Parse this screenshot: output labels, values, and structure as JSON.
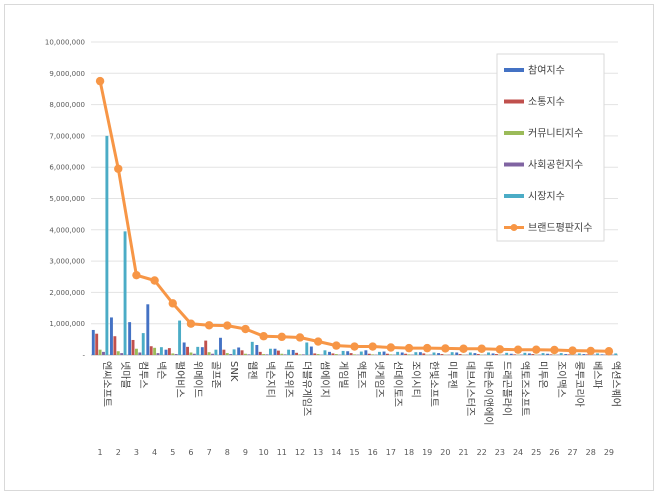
{
  "chart_data": {
    "type": "bar",
    "title": "",
    "xlabel": "",
    "ylabel": "",
    "ylim": [
      0,
      10000000
    ],
    "yticks": [
      0,
      1000000,
      2000000,
      3000000,
      4000000,
      5000000,
      6000000,
      7000000,
      8000000,
      9000000,
      10000000
    ],
    "ytick_labels": [
      "-",
      "1,000,000",
      "2,000,000",
      "3,000,000",
      "4,000,000",
      "5,000,000",
      "6,000,000",
      "7,000,000",
      "8,000,000",
      "9,000,000",
      "10,000,000"
    ],
    "grid": true,
    "legend_position": "right",
    "categories": [
      "엔씨소프트",
      "넷마블",
      "컴투스",
      "넥슨",
      "펄어비스",
      "위메이드",
      "골프존",
      "SNK",
      "웹젠",
      "넥슨지티",
      "네오위즈",
      "더블유게임즈",
      "썸에이지",
      "게임빌",
      "액토즈",
      "넷게임즈",
      "선데이토즈",
      "조이시티",
      "한빛소프트",
      "미투젠",
      "데브시스터즈",
      "바른손이앤에이",
      "드래곤플라이",
      "액토즈소프트",
      "미투온",
      "조이맥스",
      "룽투코리아",
      "베스파",
      "액션스퀘어"
    ],
    "ranks": [
      "1",
      "2",
      "3",
      "4",
      "5",
      "6",
      "7",
      "8",
      "9",
      "10",
      "11",
      "12",
      "13",
      "14",
      "15",
      "16",
      "17",
      "18",
      "19",
      "20",
      "21",
      "22",
      "23",
      "24",
      "25",
      "26",
      "27",
      "28",
      "29"
    ],
    "series": [
      {
        "name": "참여지수",
        "color": "#4472c4",
        "values": [
          800000,
          1200000,
          1050000,
          1620000,
          170000,
          400000,
          250000,
          550000,
          240000,
          320000,
          200000,
          160000,
          270000,
          100000,
          120000,
          150000,
          110000,
          80000,
          90000,
          60000,
          80000,
          60000,
          50000,
          40000,
          50000,
          40000,
          30000,
          30000,
          20000
        ]
      },
      {
        "name": "소통지수",
        "color": "#c0504d",
        "values": [
          680000,
          600000,
          480000,
          280000,
          220000,
          260000,
          460000,
          170000,
          150000,
          100000,
          140000,
          70000,
          50000,
          50000,
          60000,
          40000,
          40000,
          40000,
          50000,
          30000,
          30000,
          30000,
          30000,
          20000,
          30000,
          20000,
          20000,
          20000,
          10000
        ]
      },
      {
        "name": "커뮤니티지수",
        "color": "#9bbb59",
        "values": [
          170000,
          120000,
          200000,
          230000,
          50000,
          80000,
          90000,
          60000,
          40000,
          30000,
          40000,
          20000,
          30000,
          30000,
          20000,
          20000,
          20000,
          20000,
          10000,
          10000,
          10000,
          10000,
          10000,
          10000,
          10000,
          10000,
          10000,
          10000,
          10000
        ]
      },
      {
        "name": "사회공헌지수",
        "color": "#8064a2",
        "values": [
          100000,
          60000,
          80000,
          60000,
          30000,
          40000,
          40000,
          30000,
          20000,
          20000,
          20000,
          20000,
          10000,
          10000,
          10000,
          10000,
          10000,
          10000,
          10000,
          10000,
          10000,
          10000,
          10000,
          10000,
          10000,
          10000,
          10000,
          10000,
          10000
        ]
      },
      {
        "name": "시장지수",
        "color": "#4bacc6",
        "values": [
          7000000,
          3950000,
          700000,
          250000,
          1100000,
          260000,
          170000,
          180000,
          420000,
          200000,
          170000,
          400000,
          150000,
          130000,
          110000,
          100000,
          100000,
          90000,
          80000,
          90000,
          80000,
          80000,
          70000,
          70000,
          60000,
          60000,
          50000,
          50000,
          50000
        ]
      }
    ],
    "line": {
      "name": "브랜드평판지수",
      "color": "#f79646",
      "values": [
        8750000,
        5950000,
        2550000,
        2380000,
        1650000,
        1000000,
        950000,
        940000,
        830000,
        600000,
        580000,
        560000,
        430000,
        300000,
        270000,
        270000,
        240000,
        220000,
        220000,
        210000,
        200000,
        200000,
        180000,
        170000,
        170000,
        160000,
        140000,
        130000,
        120000
      ]
    }
  }
}
